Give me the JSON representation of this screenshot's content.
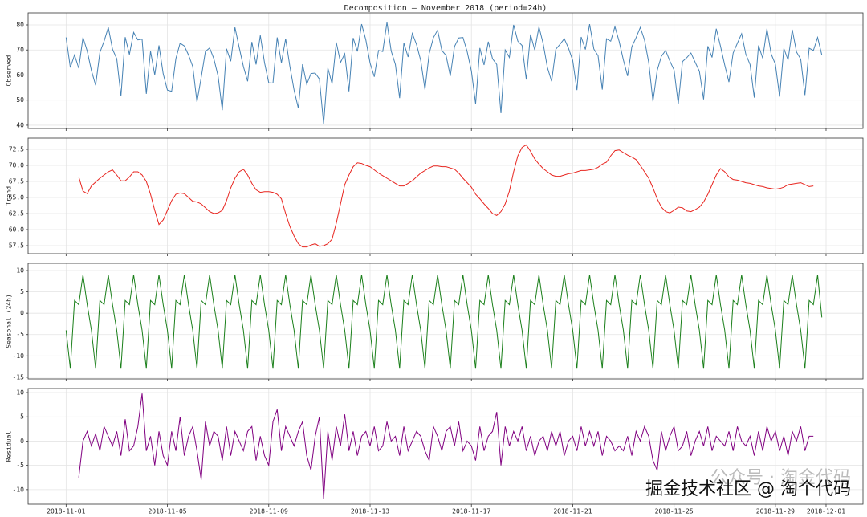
{
  "chart_data": {
    "type": "line",
    "title": "Decomposition — November 2018 (period=24h)",
    "x": [
      0,
      4,
      8,
      12,
      16,
      20,
      24,
      28,
      32,
      36,
      40,
      44,
      48,
      52,
      56,
      60,
      64,
      68,
      72,
      76,
      80,
      84,
      88,
      92,
      96,
      100,
      104,
      108,
      112,
      116,
      120,
      124,
      128,
      132,
      136,
      140,
      144,
      148,
      152,
      156,
      160,
      164,
      168,
      172,
      176,
      180,
      184,
      188,
      192,
      196,
      200,
      204,
      208,
      212,
      216,
      220,
      224,
      228,
      232,
      236,
      240,
      244,
      248,
      252,
      256,
      260,
      264,
      268,
      272,
      276,
      280,
      284,
      288,
      292,
      296,
      300,
      304,
      308,
      312,
      316,
      320,
      324,
      328,
      332,
      336,
      340,
      344,
      348,
      352,
      356,
      360,
      364,
      368,
      372,
      376,
      380,
      384,
      388,
      392,
      396,
      400,
      404,
      408,
      412,
      416,
      420,
      424,
      428,
      432,
      436,
      440,
      444,
      448,
      452,
      456,
      460,
      464,
      468,
      472,
      476,
      480,
      484,
      488,
      492,
      496,
      500,
      504,
      508,
      512,
      516,
      520,
      524,
      528,
      532,
      536,
      540,
      544,
      548,
      552,
      556,
      560,
      564,
      568,
      572,
      576,
      580,
      584,
      588,
      592,
      596,
      600,
      604,
      608,
      612,
      616,
      620,
      624,
      628,
      632,
      636,
      640,
      644,
      648,
      652,
      656,
      660,
      664,
      668,
      672,
      676,
      680,
      684,
      688,
      692,
      696,
      700,
      704,
      708,
      712,
      716
    ],
    "xlim": [
      -36,
      755
    ],
    "xticks": [
      {
        "value": 0,
        "label": "2018-11-01"
      },
      {
        "value": 96,
        "label": "2018-11-05"
      },
      {
        "value": 192,
        "label": "2018-11-09"
      },
      {
        "value": 288,
        "label": "2018-11-13"
      },
      {
        "value": 384,
        "label": "2018-11-17"
      },
      {
        "value": 480,
        "label": "2018-11-21"
      },
      {
        "value": 576,
        "label": "2018-11-25"
      },
      {
        "value": 672,
        "label": "2018-11-29"
      },
      {
        "value": 720,
        "label": "2018-12-01"
      }
    ],
    "grid": true,
    "panels": [
      {
        "ylabel": "Observed",
        "color": "#4682b4",
        "ylim": [
          38.7,
          84.8
        ],
        "yticks": [
          40,
          50,
          60,
          70,
          80
        ],
        "values": [
          75,
          63,
          68,
          62.7,
          75,
          69.6,
          61.8,
          55.9,
          69,
          73.5,
          79,
          70.3,
          66.5,
          51.6,
          75.1,
          68.2,
          77,
          74,
          74.3,
          52.5,
          69.5,
          60,
          71.8,
          60.5,
          54,
          53.5,
          66.5,
          72.7,
          71.6,
          68,
          63.4,
          49.3,
          59,
          69.4,
          70.8,
          66.5,
          59.6,
          46,
          70.5,
          65.5,
          79,
          71,
          63.4,
          57.5,
          73.2,
          64.2,
          75.8,
          64.9,
          56.9,
          56.8,
          75,
          64.8,
          74.5,
          63.5,
          54,
          46.8,
          64.3,
          56.3,
          60.6,
          60.8,
          58.4,
          40.5,
          62.8,
          56.5,
          73,
          65,
          68.5,
          53.5,
          74.8,
          69.4,
          80.3,
          74,
          64.8,
          59.3,
          69.8,
          69.4,
          81,
          69.6,
          64.2,
          50.8,
          72.8,
          67.2,
          76.6,
          72.2,
          65.8,
          54.2,
          68.6,
          74.9,
          77.9,
          69.8,
          67.8,
          59.6,
          71.4,
          74.8,
          75,
          69.3,
          61.6,
          48.5,
          70.8,
          64,
          73.3,
          66.5,
          64.2,
          44.8,
          70,
          67,
          80,
          73.5,
          71.8,
          58.2,
          76.2,
          70,
          79.2,
          72.5,
          63,
          57.5,
          70.3,
          72.3,
          74.5,
          70.7,
          65.8,
          54,
          75.2,
          70.2,
          80.3,
          70.4,
          67.7,
          54.2,
          74.5,
          73.5,
          79.3,
          73.4,
          66,
          59.6,
          71.3,
          74.9,
          79,
          74,
          65,
          49.5,
          61.8,
          67.5,
          69.8,
          65.6,
          62,
          48.5,
          65.4,
          66.9,
          68.8,
          65.1,
          61.5,
          50.3,
          71.5,
          67,
          78.5,
          71.5,
          64,
          57.2,
          68.8,
          72.7,
          76.5,
          68.3,
          64.2,
          51,
          71.8,
          66.7,
          78.5,
          68.4,
          64.3,
          51.4,
          70.6,
          66,
          78.1,
          69.2,
          66.3,
          52,
          70.7,
          69.8,
          75,
          68
        ]
      },
      {
        "ylabel": "Trend",
        "color": "#e8251f",
        "ylim": [
          56.25,
          74.25
        ],
        "yticks": [
          57.5,
          {
            "value": 60,
            "label": "60.0"
          },
          62.5,
          {
            "value": 65,
            "label": "65.0"
          },
          67.5,
          {
            "value": 70,
            "label": "70.0"
          },
          72.5
        ],
        "values": [
          null,
          null,
          null,
          68.2,
          66,
          65.6,
          66.8,
          67.4,
          68,
          68.5,
          69,
          69.3,
          68.5,
          67.6,
          67.6,
          68.2,
          69,
          69,
          68.5,
          67.5,
          65.5,
          63,
          60.8,
          61.5,
          63,
          64.5,
          65.5,
          65.7,
          65.6,
          65,
          64.4,
          64.3,
          64,
          63.4,
          62.8,
          62.5,
          62.6,
          63,
          64.5,
          66.5,
          68,
          69,
          69.4,
          68.5,
          67.2,
          66.2,
          65.8,
          65.9,
          65.9,
          65.8,
          65.5,
          64.8,
          62.5,
          60.5,
          59,
          57.8,
          57.3,
          57.3,
          57.6,
          57.8,
          57.4,
          57.5,
          57.8,
          58.5,
          61,
          64,
          67,
          68.5,
          69.8,
          70.4,
          70.3,
          70,
          69.8,
          69.3,
          68.8,
          68.4,
          68,
          67.6,
          67.2,
          66.8,
          66.8,
          67.2,
          67.6,
          68.2,
          68.8,
          69.2,
          69.6,
          69.9,
          69.9,
          69.8,
          69.8,
          69.6,
          69.4,
          68.8,
          68,
          67.3,
          66.6,
          65.5,
          64.8,
          64,
          63.3,
          62.5,
          62.2,
          62.8,
          64,
          66,
          69,
          71.5,
          72.8,
          73.2,
          72.2,
          71,
          70.2,
          69.5,
          69,
          68.5,
          68.3,
          68.3,
          68.5,
          68.7,
          68.8,
          69,
          69.2,
          69.2,
          69.3,
          69.4,
          69.7,
          70.2,
          70.5,
          71.5,
          72.3,
          72.4,
          72,
          71.6,
          71.3,
          70.9,
          70,
          69,
          68,
          66.5,
          64.8,
          63.5,
          62.8,
          62.6,
          63,
          63.5,
          63.4,
          62.9,
          62.8,
          63.1,
          63.5,
          64.3,
          65.5,
          67,
          68.5,
          69.5,
          69,
          68.2,
          67.8,
          67.7,
          67.5,
          67.3,
          67.2,
          67,
          66.8,
          66.7,
          66.5,
          66.4,
          66.3,
          66.4,
          66.6,
          67,
          67.1,
          67.2,
          67.3,
          67,
          66.7,
          66.8,
          null,
          null
        ]
      },
      {
        "ylabel": "Seasonal (24h)",
        "color": "#1a7f1a",
        "ylim": [
          -15.4,
          11.7
        ],
        "yticks": [
          -15,
          -10,
          -5,
          0,
          5,
          10
        ],
        "values": [
          -4,
          -13,
          3,
          2,
          9,
          2,
          -4,
          -13,
          3,
          2,
          9,
          2,
          -4,
          -13,
          3,
          2,
          9,
          2,
          -4,
          -13,
          3,
          2,
          9,
          2,
          -4,
          -13,
          3,
          2,
          9,
          2,
          -4,
          -13,
          3,
          2,
          9,
          2,
          -4,
          -13,
          3,
          2,
          9,
          2,
          -4,
          -13,
          3,
          2,
          9,
          2,
          -4,
          -13,
          3,
          2,
          9,
          2,
          -4,
          -13,
          3,
          2,
          9,
          2,
          -4,
          -13,
          3,
          2,
          9,
          2,
          -4,
          -13,
          3,
          2,
          9,
          2,
          -4,
          -13,
          3,
          2,
          9,
          2,
          -4,
          -13,
          3,
          2,
          9,
          2,
          -4,
          -13,
          3,
          2,
          9,
          2,
          -4,
          -13,
          3,
          2,
          9,
          2,
          -4,
          -13,
          3,
          2,
          9,
          2,
          -4,
          -13,
          3,
          2,
          9,
          2,
          -4,
          -13,
          3,
          2,
          9,
          2,
          -4,
          -13,
          3,
          2,
          9,
          2,
          -4,
          -13,
          3,
          2,
          9,
          2,
          -4,
          -13,
          3,
          2,
          9,
          2,
          -4,
          -13,
          3,
          2,
          9,
          2,
          -4,
          -13,
          3,
          2,
          9,
          2,
          -4,
          -13,
          3,
          2,
          9,
          2,
          -4,
          -13,
          3,
          2,
          9,
          2,
          -4,
          -13,
          3,
          2,
          9,
          2,
          -4,
          -13,
          3,
          2,
          9,
          2,
          -4,
          -13,
          3,
          2,
          9,
          2,
          -4,
          -13,
          3,
          2,
          9,
          -1
        ]
      },
      {
        "ylabel": "Residual",
        "color": "#800080",
        "ylim": [
          -13,
          10.83
        ],
        "yticks": [
          -10,
          -5,
          0,
          5,
          10
        ],
        "values": [
          null,
          null,
          null,
          -7.5,
          0,
          2,
          -1,
          1.5,
          -2,
          3,
          1,
          -1,
          2,
          -3,
          4.5,
          -2,
          -1,
          3,
          9.8,
          -2,
          1,
          -5,
          2,
          -3,
          -5,
          2,
          -2,
          5,
          -3,
          1,
          3,
          -2,
          -8,
          4,
          -1,
          2,
          1,
          -4,
          3,
          -3,
          2,
          0,
          -2,
          2,
          3,
          -4,
          1,
          -3,
          -5,
          4,
          6.5,
          -2,
          3,
          1,
          -1,
          2,
          4,
          -3,
          -6,
          1,
          5,
          -12,
          2,
          -4,
          3,
          -1,
          5.5,
          -2,
          2,
          -3,
          1,
          2,
          -1,
          3,
          -2,
          -1,
          4,
          0,
          1,
          -3,
          3,
          -2,
          0,
          2,
          1,
          -2,
          -4,
          3,
          1,
          -2,
          2,
          3,
          -1,
          4,
          -2,
          0,
          -1,
          -4,
          3,
          -2,
          1,
          2,
          6,
          -5,
          3,
          -1,
          2,
          0,
          3,
          -2,
          1,
          -3,
          0,
          1,
          -2,
          2,
          -1,
          2,
          -3,
          0,
          1,
          -2,
          3,
          -1,
          2,
          -1,
          2,
          -3,
          1,
          0,
          -2,
          -1,
          -2,
          1,
          -3,
          2,
          0,
          3,
          1,
          -4,
          -6,
          2,
          -2,
          1,
          3,
          -2,
          -1,
          2,
          -3,
          0,
          2,
          -1,
          3,
          -2,
          1,
          0,
          -1,
          2,
          -2,
          3,
          0,
          -1,
          1,
          -3,
          2,
          -2,
          3,
          0,
          2,
          -2,
          1,
          -3,
          2,
          0,
          3,
          -2,
          1,
          1,
          null,
          null
        ]
      }
    ],
    "watermark": [
      "公众号 · 淘金代码",
      "掘金技术社区 @ 淘个代码"
    ]
  }
}
